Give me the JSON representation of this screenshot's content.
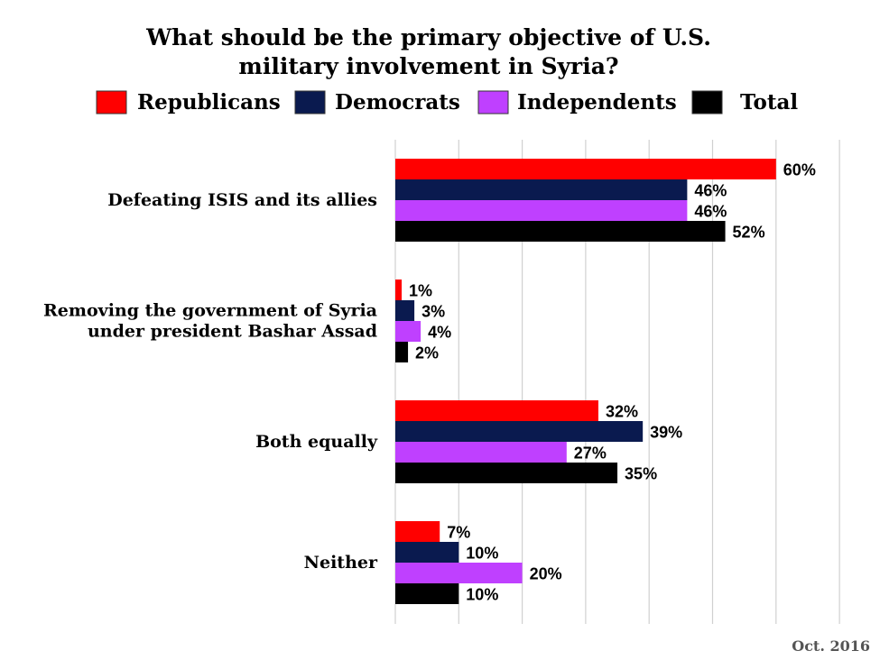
{
  "chart_data": {
    "type": "bar",
    "orientation": "horizontal",
    "title_lines": [
      "What should be the primary objective of U.S.",
      "military involvement in Syria?"
    ],
    "categories": [
      [
        "Defeating ISIS and its allies"
      ],
      [
        "Removing the government of Syria",
        "under president Bashar Assad"
      ],
      [
        "Both equally"
      ],
      [
        "Neither"
      ]
    ],
    "series": [
      {
        "name": "Republicans",
        "color": "#ff0000",
        "values": [
          60,
          1,
          32,
          7
        ],
        "labels": [
          "60%",
          "1%",
          "32%",
          "7%"
        ]
      },
      {
        "name": "Democrats",
        "color": "#0a1a4f",
        "values": [
          46,
          3,
          39,
          10
        ],
        "labels": [
          "46%",
          "3%",
          "39%",
          "10%"
        ]
      },
      {
        "name": "Independents",
        "color": "#bf40ff",
        "values": [
          46,
          4,
          27,
          20
        ],
        "labels": [
          "46%",
          "4%",
          "27%",
          "20%"
        ]
      },
      {
        "name": "Total",
        "color": "#000000",
        "values": [
          52,
          2,
          35,
          10
        ],
        "labels": [
          "52%",
          "2%",
          "35%",
          "10%"
        ]
      }
    ],
    "xlim": [
      0,
      70
    ],
    "grid": true,
    "legend_position": "top"
  },
  "footnote": "Oct. 2016"
}
